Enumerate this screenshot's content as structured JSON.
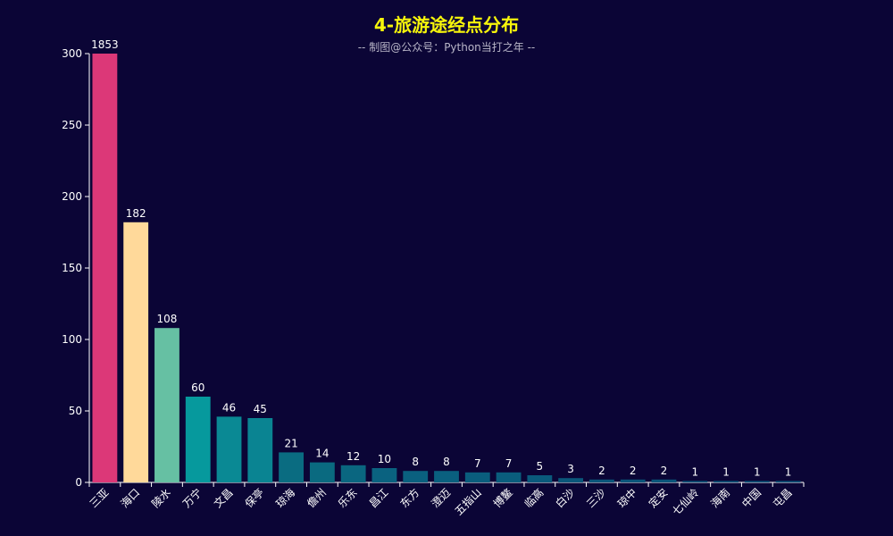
{
  "chart_data": {
    "type": "bar",
    "title": "4-旅游途经点分布",
    "subtitle": "-- 制图@公众号：Python当打之年 --",
    "categories": [
      "三亚",
      "海口",
      "陵水",
      "万宁",
      "文昌",
      "保亭",
      "琼海",
      "儋州",
      "乐东",
      "昌江",
      "东方",
      "澄迈",
      "五指山",
      "博鳌",
      "临高",
      "白沙",
      "三沙",
      "琼中",
      "定安",
      "七仙岭",
      "海南",
      "中国",
      "屯昌"
    ],
    "values": [
      1853,
      182,
      108,
      60,
      46,
      45,
      21,
      14,
      12,
      10,
      8,
      8,
      7,
      7,
      5,
      3,
      2,
      2,
      2,
      1,
      1,
      1,
      1
    ],
    "data_labels": [
      "1853",
      "182",
      "108",
      "60",
      "46",
      "45",
      "21",
      "14",
      "12",
      "10",
      "8",
      "8",
      "7",
      "7",
      "5",
      "3",
      "2",
      "2",
      "2",
      "1",
      "1",
      "1",
      "1"
    ],
    "y_ticks": [
      "0",
      "50",
      "100",
      "150",
      "200",
      "250",
      "300"
    ],
    "ylim": [
      0,
      300
    ],
    "grid": false,
    "legend": "none",
    "colors": [
      "#dc3878",
      "#ffd99a",
      "#66c0a3",
      "#06999d",
      "#0a8994",
      "#0a8492",
      "#0a6c81",
      "#0a6a80",
      "#0a6680",
      "#0a6280",
      "#0a607f",
      "#0a607f",
      "#0a5d7d",
      "#0a5d7d",
      "#0a5a7c",
      "#0a577a",
      "#0a557a",
      "#0a557a",
      "#0a557a",
      "#0a5379",
      "#0a5379",
      "#0a5379",
      "#0a5379"
    ],
    "axis_color": "#ffffff",
    "background": "#0b0536",
    "title_color": "#f6f50b"
  }
}
